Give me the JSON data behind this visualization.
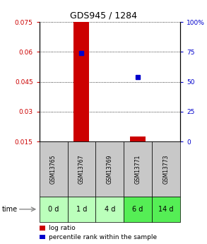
{
  "title": "GDS945 / 1284",
  "samples": [
    "GSM13765",
    "GSM13767",
    "GSM13769",
    "GSM13771",
    "GSM13773"
  ],
  "time_labels": [
    "0 d",
    "1 d",
    "4 d",
    "6 d",
    "14 d"
  ],
  "ylim_left": [
    0.015,
    0.075
  ],
  "ylim_right": [
    0,
    100
  ],
  "yticks_left": [
    0.015,
    0.03,
    0.045,
    0.06,
    0.075
  ],
  "yticks_right": [
    0,
    25,
    50,
    75,
    100
  ],
  "ytick_labels_left": [
    "0.015",
    "0.03",
    "0.045",
    "0.06",
    "0.075"
  ],
  "ytick_labels_right": [
    "0",
    "25",
    "50",
    "75",
    "100%"
  ],
  "log_ratio_data": {
    "GSM13767": [
      0.015,
      0.075
    ],
    "GSM13771": [
      0.015,
      0.0175
    ]
  },
  "percentile_data": {
    "GSM13767": 0.0595,
    "GSM13771": 0.0472
  },
  "log_ratio_color": "#cc0000",
  "percentile_color": "#0000cc",
  "bar_width": 0.55,
  "grid_color": "#000000",
  "sample_cell_color": "#c8c8c8",
  "time_cell_colors": [
    "#bbffbb",
    "#bbffbb",
    "#bbffbb",
    "#55ee55",
    "#55ee55"
  ],
  "legend_items": [
    "log ratio",
    "percentile rank within the sample"
  ],
  "legend_colors": [
    "#cc0000",
    "#0000cc"
  ],
  "background_color": "#ffffff",
  "figsize": [
    2.93,
    3.45
  ],
  "dpi": 100
}
